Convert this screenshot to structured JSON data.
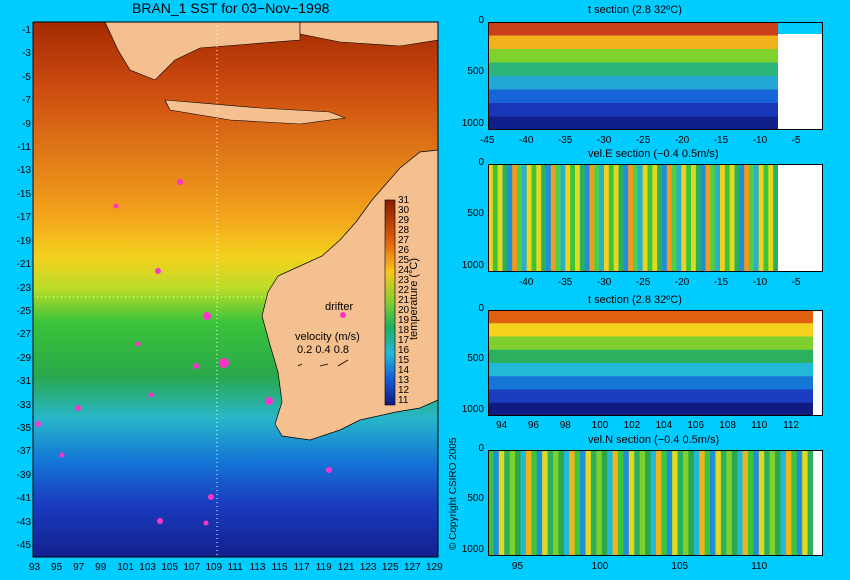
{
  "main_map": {
    "title": "BRAN_1 SST for 03−Nov−1998",
    "lat_ticks": [
      "-1",
      "-3",
      "-5",
      "-7",
      "-9",
      "-11",
      "-13",
      "-15",
      "-17",
      "-19",
      "-21",
      "-23",
      "-25",
      "-27",
      "-29",
      "-31",
      "-33",
      "-35",
      "-37",
      "-39",
      "-41",
      "-43",
      "-45"
    ],
    "lon_ticks": [
      "93",
      "95",
      "97",
      "99",
      "101",
      "103",
      "105",
      "107",
      "109",
      "111",
      "113",
      "115",
      "117",
      "119",
      "121",
      "123",
      "125",
      "127",
      "129"
    ],
    "colorbar_ticks": [
      "31",
      "30",
      "29",
      "28",
      "27",
      "26",
      "25",
      "24",
      "23",
      "22",
      "21",
      "20",
      "19",
      "18",
      "17",
      "16",
      "15",
      "14",
      "13",
      "12",
      "11"
    ],
    "colorbar_label": "temperature (°C)",
    "drifter_label": "drifter",
    "velocity_label": "velocity (m/s)",
    "velocity_scale": "0.2 0.4 0.8",
    "copyright": "© Copyright CSIRO 2005",
    "colors": {
      "land": "#f5c08f",
      "drifter": "#ff33cc",
      "background": "#00ccff"
    }
  },
  "chart_data": [
    {
      "type": "heatmap",
      "title": "t section (2.8      32ºC)",
      "x_ticks": [
        "-45",
        "-40",
        "-35",
        "-30",
        "-25",
        "-20",
        "-15",
        "-10",
        "-5"
      ],
      "y_ticks": [
        "0",
        "500",
        "1000"
      ],
      "xlim": [
        -45,
        -2
      ],
      "ylim": [
        1050,
        0
      ]
    },
    {
      "type": "heatmap",
      "title": "vel.E section (−0.4      0.5m/s)",
      "x_ticks": [
        "-40",
        "-35",
        "-30",
        "-25",
        "-20",
        "-15",
        "-10",
        "-5"
      ],
      "y_ticks": [
        "0",
        "500",
        "1000"
      ],
      "xlim": [
        -45,
        -2
      ],
      "ylim": [
        1050,
        0
      ]
    },
    {
      "type": "heatmap",
      "title": "t section (2.8      32ºC)",
      "x_ticks": [
        "94",
        "96",
        "98",
        "100",
        "102",
        "104",
        "106",
        "108",
        "110",
        "112"
      ],
      "y_ticks": [
        "0",
        "500",
        "1000"
      ],
      "xlim": [
        93,
        114
      ],
      "ylim": [
        1050,
        0
      ]
    },
    {
      "type": "heatmap",
      "title": "vel.N section (−0.4      0.5m/s)",
      "x_ticks": [
        "95",
        "100",
        "105",
        "110"
      ],
      "y_ticks": [
        "0",
        "500",
        "1000"
      ],
      "xlim": [
        93,
        114
      ],
      "ylim": [
        1050,
        0
      ]
    }
  ]
}
